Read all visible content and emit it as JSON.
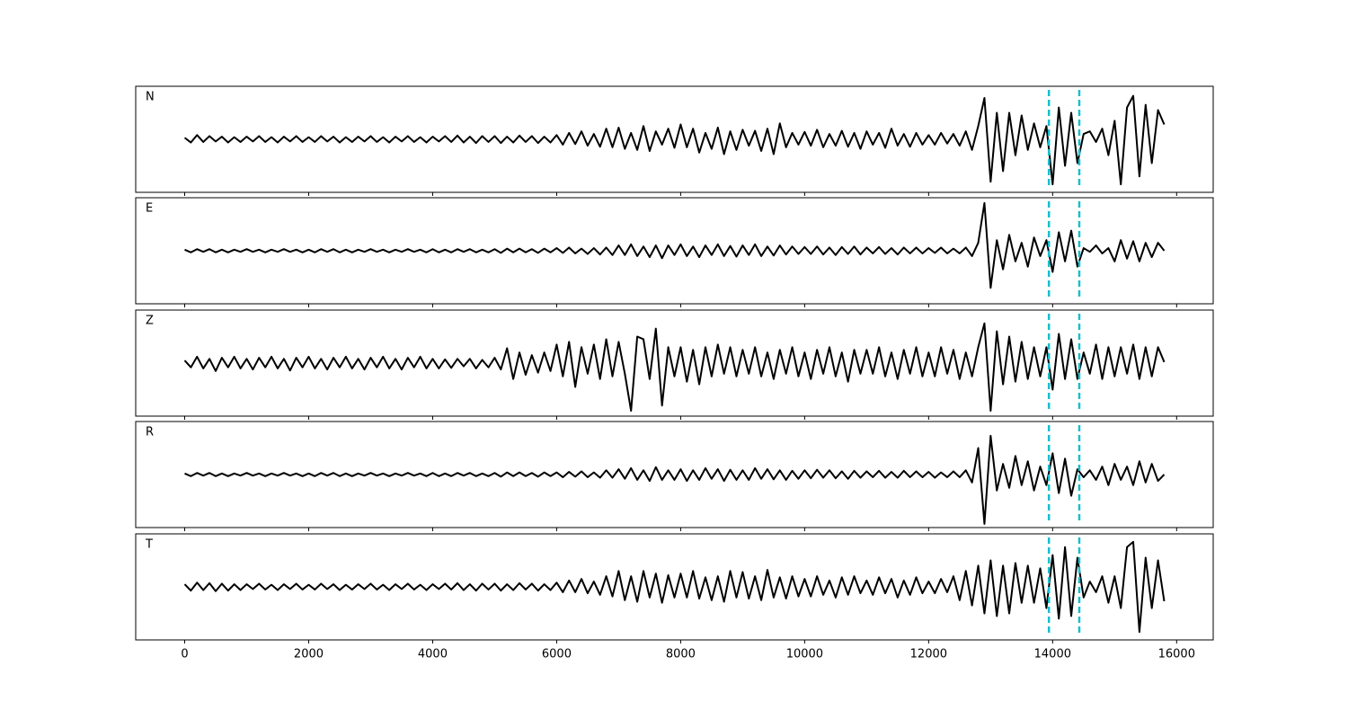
{
  "chart_data": {
    "type": "seismogram",
    "x": [
      0,
      100,
      200,
      300,
      400,
      500,
      600,
      700,
      800,
      900,
      1000,
      1100,
      1200,
      1300,
      1400,
      1500,
      1600,
      1700,
      1800,
      1900,
      2000,
      2100,
      2200,
      2300,
      2400,
      2500,
      2600,
      2700,
      2800,
      2900,
      3000,
      3100,
      3200,
      3300,
      3400,
      3500,
      3600,
      3700,
      3800,
      3900,
      4000,
      4100,
      4200,
      4300,
      4400,
      4500,
      4600,
      4700,
      4800,
      4900,
      5000,
      5100,
      5200,
      5300,
      5400,
      5500,
      5600,
      5700,
      5800,
      5900,
      6000,
      6100,
      6200,
      6300,
      6400,
      6500,
      6600,
      6700,
      6800,
      6900,
      7000,
      7100,
      7200,
      7300,
      7400,
      7500,
      7600,
      7700,
      7800,
      7900,
      8000,
      8100,
      8200,
      8300,
      8400,
      8500,
      8600,
      8700,
      8800,
      8900,
      9000,
      9100,
      9200,
      9300,
      9400,
      9500,
      9600,
      9700,
      9800,
      9900,
      10000,
      10100,
      10200,
      10300,
      10400,
      10500,
      10600,
      10700,
      10800,
      10900,
      11000,
      11100,
      11200,
      11300,
      11400,
      11500,
      11600,
      11700,
      11800,
      11900,
      12000,
      12100,
      12200,
      12300,
      12400,
      12500,
      12600,
      12700,
      12800,
      12900,
      13000,
      13100,
      13200,
      13300,
      13400,
      13500,
      13600,
      13700,
      13800,
      13900,
      14000,
      14100,
      14200,
      14300,
      14400,
      14500,
      14600,
      14700,
      14800,
      14900,
      15000,
      15100,
      15200,
      15300,
      15400,
      15500,
      15600,
      15700,
      15800
    ],
    "xlim": [
      -790,
      16590
    ],
    "xticks": [
      0,
      2000,
      4000,
      6000,
      8000,
      10000,
      12000,
      14000,
      16000
    ],
    "ylim": [
      -1,
      1
    ],
    "line_color": "#000000",
    "vlines": [
      13940,
      14430
    ],
    "vline_color": "#17becf",
    "series": [
      {
        "name": "N",
        "values": [
          0.03,
          -0.06,
          0.08,
          -0.05,
          0.06,
          -0.04,
          0.05,
          -0.06,
          0.04,
          -0.05,
          0.05,
          -0.04,
          0.06,
          -0.05,
          0.04,
          -0.06,
          0.05,
          -0.04,
          0.06,
          -0.05,
          0.04,
          -0.05,
          0.06,
          -0.04,
          0.05,
          -0.06,
          0.04,
          -0.05,
          0.05,
          -0.04,
          0.06,
          -0.05,
          0.04,
          -0.06,
          0.05,
          -0.04,
          0.06,
          -0.05,
          0.04,
          -0.06,
          0.05,
          -0.04,
          0.06,
          -0.05,
          0.07,
          -0.06,
          0.05,
          -0.07,
          0.06,
          -0.05,
          0.06,
          -0.07,
          0.05,
          -0.06,
          0.07,
          -0.05,
          0.06,
          -0.07,
          0.05,
          -0.06,
          0.08,
          -0.1,
          0.12,
          -0.09,
          0.15,
          -0.12,
          0.1,
          -0.14,
          0.2,
          -0.15,
          0.22,
          -0.18,
          0.12,
          -0.2,
          0.25,
          -0.22,
          0.15,
          -0.1,
          0.2,
          -0.16,
          0.28,
          -0.15,
          0.2,
          -0.25,
          0.12,
          -0.18,
          0.22,
          -0.28,
          0.15,
          -0.2,
          0.18,
          -0.12,
          0.16,
          -0.22,
          0.2,
          -0.28,
          0.3,
          -0.15,
          0.12,
          -0.1,
          0.14,
          -0.12,
          0.18,
          -0.15,
          0.1,
          -0.12,
          0.16,
          -0.14,
          0.12,
          -0.18,
          0.15,
          -0.1,
          0.12,
          -0.16,
          0.2,
          -0.12,
          0.1,
          -0.14,
          0.12,
          -0.1,
          0.08,
          -0.1,
          0.12,
          -0.08,
          0.1,
          -0.12,
          0.15,
          -0.2,
          0.25,
          0.78,
          -0.8,
          0.5,
          -0.6,
          0.5,
          -0.3,
          0.45,
          -0.2,
          0.3,
          -0.15,
          0.25,
          -0.85,
          0.6,
          -0.5,
          0.5,
          -0.45,
          0.1,
          0.15,
          -0.05,
          0.2,
          -0.3,
          0.35,
          -0.85,
          0.6,
          0.82,
          -0.7,
          0.65,
          -0.45,
          0.55,
          0.28
        ]
      },
      {
        "name": "E",
        "values": [
          0.02,
          -0.03,
          0.03,
          -0.02,
          0.03,
          -0.03,
          0.02,
          -0.03,
          0.02,
          -0.02,
          0.03,
          -0.02,
          0.02,
          -0.03,
          0.02,
          -0.02,
          0.03,
          -0.02,
          0.02,
          -0.03,
          0.02,
          -0.03,
          0.03,
          -0.02,
          0.03,
          -0.03,
          0.02,
          -0.03,
          0.02,
          -0.02,
          0.03,
          -0.02,
          0.02,
          -0.03,
          0.02,
          -0.02,
          0.03,
          -0.02,
          0.02,
          -0.03,
          0.03,
          -0.03,
          0.02,
          -0.03,
          0.03,
          -0.02,
          0.03,
          -0.03,
          0.02,
          -0.03,
          0.03,
          -0.04,
          0.04,
          -0.03,
          0.04,
          -0.03,
          0.03,
          -0.04,
          0.04,
          -0.03,
          0.05,
          -0.04,
          0.06,
          -0.05,
          0.04,
          -0.06,
          0.05,
          -0.07,
          0.06,
          -0.08,
          0.1,
          -0.08,
          0.12,
          -0.1,
          0.08,
          -0.12,
          0.1,
          -0.14,
          0.1,
          -0.08,
          0.12,
          -0.1,
          0.08,
          -0.12,
          0.1,
          -0.08,
          0.12,
          -0.1,
          0.09,
          -0.11,
          0.1,
          -0.08,
          0.12,
          -0.1,
          0.08,
          -0.09,
          0.1,
          -0.07,
          0.08,
          -0.06,
          0.07,
          -0.06,
          0.08,
          -0.07,
          0.06,
          -0.08,
          0.07,
          -0.06,
          0.08,
          -0.07,
          0.06,
          -0.05,
          0.07,
          -0.06,
          0.05,
          -0.07,
          0.06,
          -0.05,
          0.06,
          -0.05,
          0.05,
          -0.04,
          0.06,
          -0.05,
          0.04,
          -0.05,
          0.06,
          -0.1,
          0.15,
          0.9,
          -0.7,
          0.2,
          -0.35,
          0.3,
          -0.2,
          0.15,
          -0.3,
          0.25,
          -0.1,
          0.2,
          -0.4,
          0.35,
          -0.2,
          0.38,
          -0.3,
          0.05,
          -0.02,
          0.1,
          -0.05,
          0.05,
          -0.2,
          0.2,
          -0.15,
          0.18,
          -0.2,
          0.15,
          -0.12,
          0.15,
          0.0
        ]
      },
      {
        "name": "Z",
        "values": [
          0.05,
          -0.08,
          0.12,
          -0.1,
          0.08,
          -0.15,
          0.1,
          -0.08,
          0.12,
          -0.1,
          0.08,
          -0.12,
          0.1,
          -0.08,
          0.12,
          -0.1,
          0.08,
          -0.14,
          0.1,
          -0.08,
          0.12,
          -0.1,
          0.08,
          -0.12,
          0.1,
          -0.08,
          0.12,
          -0.1,
          0.08,
          -0.12,
          0.1,
          -0.08,
          0.12,
          -0.1,
          0.08,
          -0.12,
          0.1,
          -0.08,
          0.12,
          -0.1,
          0.08,
          -0.1,
          0.07,
          -0.09,
          0.08,
          -0.06,
          0.08,
          -0.1,
          0.06,
          -0.08,
          0.1,
          -0.12,
          0.28,
          -0.3,
          0.2,
          -0.22,
          0.15,
          -0.18,
          0.2,
          -0.15,
          0.35,
          -0.25,
          0.4,
          -0.45,
          0.3,
          -0.2,
          0.35,
          -0.3,
          0.45,
          -0.25,
          0.4,
          -0.2,
          -0.9,
          0.5,
          0.45,
          -0.3,
          0.65,
          -0.8,
          0.3,
          -0.25,
          0.3,
          -0.35,
          0.25,
          -0.4,
          0.3,
          -0.25,
          0.35,
          -0.2,
          0.3,
          -0.25,
          0.25,
          -0.2,
          0.3,
          -0.25,
          0.2,
          -0.3,
          0.25,
          -0.2,
          0.3,
          -0.25,
          0.2,
          -0.3,
          0.25,
          -0.2,
          0.3,
          -0.25,
          0.2,
          -0.35,
          0.25,
          -0.2,
          0.25,
          -0.2,
          0.3,
          -0.25,
          0.2,
          -0.3,
          0.25,
          -0.2,
          0.3,
          -0.25,
          0.2,
          -0.25,
          0.3,
          -0.2,
          0.25,
          -0.3,
          0.2,
          -0.25,
          0.3,
          0.75,
          -0.9,
          0.6,
          -0.4,
          0.5,
          -0.35,
          0.4,
          -0.3,
          0.3,
          -0.25,
          0.3,
          -0.5,
          0.55,
          -0.3,
          0.45,
          -0.3,
          0.2,
          -0.2,
          0.35,
          -0.3,
          0.3,
          -0.25,
          0.3,
          -0.2,
          0.35,
          -0.3,
          0.3,
          -0.25,
          0.3,
          0.02
        ]
      },
      {
        "name": "R",
        "values": [
          0.02,
          -0.03,
          0.03,
          -0.02,
          0.03,
          -0.03,
          0.02,
          -0.03,
          0.02,
          -0.02,
          0.03,
          -0.02,
          0.02,
          -0.03,
          0.02,
          -0.02,
          0.03,
          -0.02,
          0.02,
          -0.03,
          0.02,
          -0.03,
          0.03,
          -0.02,
          0.03,
          -0.03,
          0.02,
          -0.03,
          0.02,
          -0.02,
          0.03,
          -0.02,
          0.02,
          -0.03,
          0.02,
          -0.02,
          0.03,
          -0.02,
          0.02,
          -0.03,
          0.03,
          -0.03,
          0.02,
          -0.03,
          0.03,
          -0.02,
          0.03,
          -0.03,
          0.02,
          -0.03,
          0.03,
          -0.04,
          0.04,
          -0.03,
          0.04,
          -0.03,
          0.03,
          -0.04,
          0.04,
          -0.03,
          0.04,
          -0.05,
          0.05,
          -0.04,
          0.06,
          -0.05,
          0.04,
          -0.06,
          0.08,
          -0.06,
          0.1,
          -0.08,
          0.12,
          -0.1,
          0.08,
          -0.12,
          0.14,
          -0.1,
          0.08,
          -0.1,
          0.1,
          -0.12,
          0.08,
          -0.1,
          0.12,
          -0.08,
          0.1,
          -0.12,
          0.09,
          -0.1,
          0.08,
          -0.1,
          0.12,
          -0.08,
          0.1,
          -0.09,
          0.08,
          -0.1,
          0.07,
          -0.08,
          0.08,
          -0.07,
          0.09,
          -0.06,
          0.08,
          -0.07,
          0.06,
          -0.08,
          0.07,
          -0.06,
          0.06,
          -0.05,
          0.07,
          -0.06,
          0.05,
          -0.06,
          0.07,
          -0.05,
          0.06,
          -0.05,
          0.05,
          -0.06,
          0.04,
          -0.05,
          0.06,
          -0.05,
          0.08,
          -0.15,
          0.5,
          -0.93,
          0.73,
          -0.3,
          0.2,
          -0.25,
          0.35,
          -0.2,
          0.25,
          -0.3,
          0.15,
          -0.2,
          0.4,
          -0.35,
          0.3,
          -0.4,
          0.1,
          -0.05,
          0.08,
          -0.1,
          0.15,
          -0.2,
          0.2,
          -0.1,
          0.15,
          -0.2,
          0.25,
          -0.15,
          0.2,
          -0.12,
          0.0
        ]
      },
      {
        "name": "T",
        "values": [
          0.05,
          -0.07,
          0.08,
          -0.06,
          0.07,
          -0.08,
          0.06,
          -0.07,
          0.05,
          -0.06,
          0.05,
          -0.04,
          0.06,
          -0.05,
          0.04,
          -0.06,
          0.05,
          -0.04,
          0.06,
          -0.05,
          0.04,
          -0.05,
          0.06,
          -0.04,
          0.05,
          -0.06,
          0.04,
          -0.05,
          0.05,
          -0.04,
          0.06,
          -0.05,
          0.04,
          -0.06,
          0.05,
          -0.04,
          0.06,
          -0.05,
          0.04,
          -0.06,
          0.05,
          -0.04,
          0.06,
          -0.05,
          0.07,
          -0.06,
          0.05,
          -0.07,
          0.06,
          -0.05,
          0.06,
          -0.07,
          0.05,
          -0.06,
          0.07,
          -0.05,
          0.06,
          -0.07,
          0.05,
          -0.06,
          0.08,
          -0.1,
          0.12,
          -0.1,
          0.15,
          -0.12,
          0.1,
          -0.15,
          0.2,
          -0.18,
          0.3,
          -0.25,
          0.2,
          -0.28,
          0.3,
          -0.2,
          0.25,
          -0.3,
          0.22,
          -0.2,
          0.25,
          -0.2,
          0.3,
          -0.22,
          0.18,
          -0.25,
          0.2,
          -0.28,
          0.3,
          -0.2,
          0.28,
          -0.22,
          0.2,
          -0.25,
          0.32,
          -0.2,
          0.18,
          -0.22,
          0.2,
          -0.18,
          0.15,
          -0.18,
          0.2,
          -0.15,
          0.12,
          -0.2,
          0.18,
          -0.15,
          0.2,
          -0.12,
          0.12,
          -0.15,
          0.18,
          -0.12,
          0.15,
          -0.2,
          0.12,
          -0.15,
          0.18,
          -0.12,
          0.1,
          -0.12,
          0.15,
          -0.1,
          0.2,
          -0.25,
          0.3,
          -0.35,
          0.4,
          -0.5,
          0.5,
          -0.55,
          0.4,
          -0.5,
          0.45,
          -0.3,
          0.4,
          -0.3,
          0.35,
          -0.4,
          0.6,
          -0.6,
          0.75,
          -0.55,
          0.55,
          -0.2,
          0.1,
          -0.1,
          0.2,
          -0.3,
          0.2,
          -0.4,
          0.75,
          0.85,
          -0.85,
          0.55,
          -0.4,
          0.5,
          -0.27
        ]
      }
    ]
  }
}
